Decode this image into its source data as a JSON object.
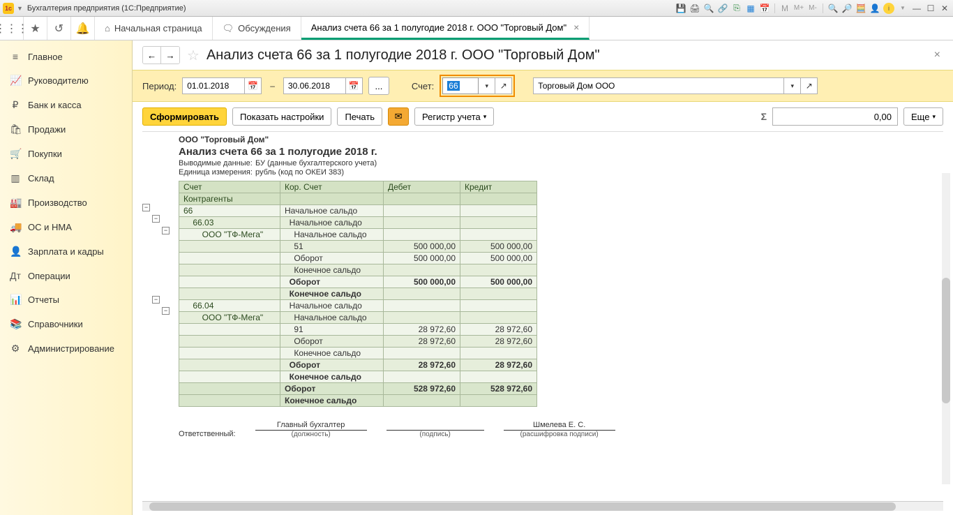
{
  "window": {
    "title": "Бухгалтерия предприятия  (1С:Предприятие)"
  },
  "titlebar_icons": [
    "save",
    "print",
    "compare",
    "link",
    "excel",
    "grid",
    "calendar",
    "M",
    "M+",
    "M-",
    "zoom-in",
    "zoom-out",
    "info",
    "user",
    "help",
    "min",
    "max",
    "close"
  ],
  "nav": {
    "tabs": [
      {
        "icon": "⌂",
        "label": "Начальная страница",
        "active": false
      },
      {
        "icon": "🗨",
        "label": "Обсуждения",
        "active": false
      },
      {
        "icon": "",
        "label": "Анализ счета 66 за 1 полугодие 2018 г. ООО \"Торговый Дом\"",
        "active": true,
        "closable": true
      }
    ]
  },
  "sidebar": {
    "items": [
      {
        "icon": "≡",
        "label": "Главное"
      },
      {
        "icon": "📈",
        "label": "Руководителю"
      },
      {
        "icon": "₽",
        "label": "Банк и касса"
      },
      {
        "icon": "🛍",
        "label": "Продажи"
      },
      {
        "icon": "🛒",
        "label": "Покупки"
      },
      {
        "icon": "▥",
        "label": "Склад"
      },
      {
        "icon": "🏭",
        "label": "Производство"
      },
      {
        "icon": "🚚",
        "label": "ОС и НМА"
      },
      {
        "icon": "👤",
        "label": "Зарплата и кадры"
      },
      {
        "icon": "Дт",
        "label": "Операции"
      },
      {
        "icon": "📊",
        "label": "Отчеты"
      },
      {
        "icon": "📚",
        "label": "Справочники"
      },
      {
        "icon": "⚙",
        "label": "Администрирование"
      }
    ]
  },
  "page": {
    "title": "Анализ счета 66 за 1 полугодие 2018 г. ООО \"Торговый Дом\""
  },
  "filter": {
    "period_label": "Период:",
    "date_from": "01.01.2018",
    "date_to": "30.06.2018",
    "dots": "...",
    "account_label": "Счет:",
    "account": "66",
    "org": "Торговый Дом ООО"
  },
  "actions": {
    "form": "Сформировать",
    "settings": "Показать настройки",
    "print": "Печать",
    "register": "Регистр учета",
    "more": "Еще",
    "sum": "0,00"
  },
  "report": {
    "org": "ООО \"Торговый Дом\"",
    "title": "Анализ счета 66 за 1 полугодие 2018 г.",
    "meta1_lbl": "Выводимые данные:",
    "meta1_val": "БУ (данные бухгалтерского учета)",
    "meta2_lbl": "Единица измерения:",
    "meta2_val": "рубль (код по ОКЕИ 383)",
    "headers": {
      "acct": "Счет",
      "sub": "Контрагенты",
      "corr": "Кор. Счет",
      "debit": "Дебет",
      "credit": "Кредит"
    },
    "rows": [
      {
        "acct": "66",
        "corr": "Начальное сальдо",
        "debit": "",
        "credit": "",
        "cls": "acct"
      },
      {
        "acct": "    66.03",
        "corr": "  Начальное сальдо",
        "debit": "",
        "credit": "",
        "cls": "alt acct"
      },
      {
        "acct": "        ООО \"ТФ-Мега\"",
        "corr": "    Начальное сальдо",
        "debit": "",
        "credit": "",
        "cls": "acct"
      },
      {
        "acct": "",
        "corr": "    51",
        "debit": "500 000,00",
        "credit": "500 000,00",
        "cls": "alt"
      },
      {
        "acct": "",
        "corr": "    Оборот",
        "debit": "500 000,00",
        "credit": "500 000,00",
        "cls": ""
      },
      {
        "acct": "",
        "corr": "    Конечное сальдо",
        "debit": "",
        "credit": "",
        "cls": "alt"
      },
      {
        "acct": "",
        "corr": "  Оборот",
        "debit": "500 000,00",
        "credit": "500 000,00",
        "cls": "bold"
      },
      {
        "acct": "",
        "corr": "  Конечное сальдо",
        "debit": "",
        "credit": "",
        "cls": "bold alt"
      },
      {
        "acct": "    66.04",
        "corr": "  Начальное сальдо",
        "debit": "",
        "credit": "",
        "cls": "acct"
      },
      {
        "acct": "        ООО \"ТФ-Мега\"",
        "corr": "    Начальное сальдо",
        "debit": "",
        "credit": "",
        "cls": "alt acct"
      },
      {
        "acct": "",
        "corr": "    91",
        "debit": "28 972,60",
        "credit": "28 972,60",
        "cls": ""
      },
      {
        "acct": "",
        "corr": "    Оборот",
        "debit": "28 972,60",
        "credit": "28 972,60",
        "cls": "alt"
      },
      {
        "acct": "",
        "corr": "    Конечное сальдо",
        "debit": "",
        "credit": "",
        "cls": ""
      },
      {
        "acct": "",
        "corr": "  Оборот",
        "debit": "28 972,60",
        "credit": "28 972,60",
        "cls": "bold alt"
      },
      {
        "acct": "",
        "corr": "  Конечное сальдо",
        "debit": "",
        "credit": "",
        "cls": "bold"
      },
      {
        "acct": "",
        "corr": "Оборот",
        "debit": "528 972,60",
        "credit": "528 972,60",
        "cls": "very-bold"
      },
      {
        "acct": "",
        "corr": "Конечное сальдо",
        "debit": "",
        "credit": "",
        "cls": "very-bold"
      }
    ],
    "sign": {
      "resp": "Ответственный:",
      "accountant": "Главный бухгалтер",
      "position": "(должность)",
      "signature": "(подпись)",
      "name": "Шмелева Е. С.",
      "decipher": "(расшифровка подписи)"
    }
  }
}
